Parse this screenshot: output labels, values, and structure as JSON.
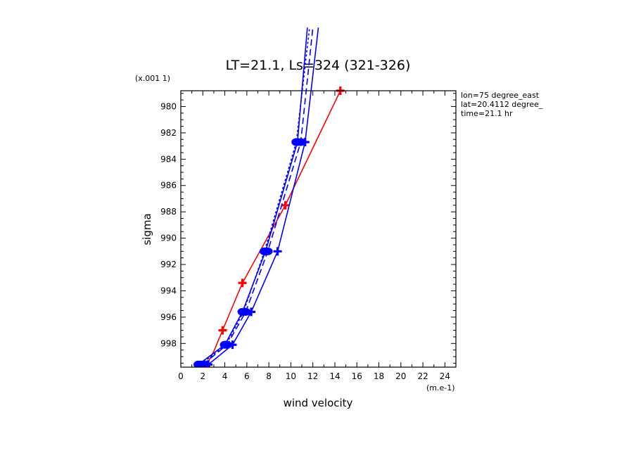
{
  "chart_data": {
    "type": "line",
    "title": "LT=21.1, Ls=324 (321-326)",
    "xlabel": "wind velocity",
    "ylabel": "sigma",
    "x_unit_label": "(m.e-1)",
    "y_unit_label": "(x.001 1)",
    "xlim": [
      0,
      25
    ],
    "ylim": [
      999.8,
      978.8
    ],
    "x_ticks": [
      "0",
      "2",
      "4",
      "6",
      "8",
      "10",
      "12",
      "14",
      "16",
      "18",
      "20",
      "22",
      "24"
    ],
    "y_ticks": [
      "980",
      "982",
      "984",
      "986",
      "988",
      "990",
      "992",
      "994",
      "996",
      "998"
    ],
    "info": [
      "lon=75 degree_east",
      "lat=20.4112 degree_",
      "time=21.1 hr"
    ],
    "series": [
      {
        "color": "#ff0000",
        "style": "solid",
        "marker": "plus",
        "points": [
          [
            2.3,
            999.7
          ],
          [
            3.0,
            998.6
          ],
          [
            3.8,
            997.0
          ],
          [
            5.6,
            993.4
          ],
          [
            9.5,
            987.5
          ],
          [
            14.5,
            978.8
          ]
        ],
        "markers": [
          [
            2.3,
            999.7
          ],
          [
            3.8,
            997.0
          ],
          [
            5.6,
            993.4
          ],
          [
            9.5,
            987.5
          ],
          [
            14.5,
            978.8
          ]
        ]
      },
      {
        "color": "#0000ff",
        "style": "solid",
        "marker": "plus",
        "points": [
          [
            2.5,
            999.6
          ],
          [
            4.7,
            998.1
          ],
          [
            6.4,
            995.6
          ],
          [
            8.8,
            991.0
          ],
          [
            11.3,
            982.7
          ],
          [
            12.5,
            974.0
          ]
        ],
        "markers": [
          [
            2.5,
            999.6
          ],
          [
            4.7,
            998.1
          ],
          [
            6.4,
            995.6
          ],
          [
            8.8,
            991.0
          ],
          [
            11.3,
            982.7
          ]
        ]
      },
      {
        "color": "#0000ff",
        "style": "solid",
        "marker": "circle",
        "points": [
          [
            1.6,
            999.6
          ],
          [
            4.0,
            998.1
          ],
          [
            5.6,
            995.6
          ],
          [
            7.7,
            991.0
          ],
          [
            10.6,
            982.7
          ],
          [
            11.5,
            974.0
          ]
        ],
        "markers": [
          [
            1.6,
            999.6
          ],
          [
            4.0,
            998.1
          ],
          [
            5.6,
            995.6
          ],
          [
            7.7,
            991.0
          ],
          [
            10.6,
            982.7
          ]
        ]
      },
      {
        "color": "#0000ff",
        "style": "dash",
        "marker": "circle",
        "points": [
          [
            2.0,
            999.6
          ],
          [
            4.2,
            998.1
          ],
          [
            5.9,
            995.6
          ],
          [
            7.9,
            991.0
          ],
          [
            10.9,
            982.7
          ],
          [
            12.0,
            974.0
          ]
        ],
        "markers": [
          [
            2.0,
            999.6
          ],
          [
            4.2,
            998.1
          ],
          [
            5.9,
            995.6
          ],
          [
            7.9,
            991.0
          ],
          [
            10.9,
            982.7
          ]
        ]
      },
      {
        "color": "#0000ff",
        "style": "dot",
        "marker": "circle",
        "points": [
          [
            1.8,
            999.6
          ],
          [
            4.1,
            998.1
          ],
          [
            5.7,
            995.6
          ],
          [
            7.6,
            991.0
          ],
          [
            10.5,
            982.7
          ],
          [
            11.7,
            974.0
          ]
        ],
        "markers": [
          [
            1.8,
            999.6
          ],
          [
            4.1,
            998.1
          ],
          [
            5.7,
            995.6
          ],
          [
            7.6,
            991.0
          ],
          [
            10.5,
            982.7
          ]
        ]
      }
    ]
  }
}
